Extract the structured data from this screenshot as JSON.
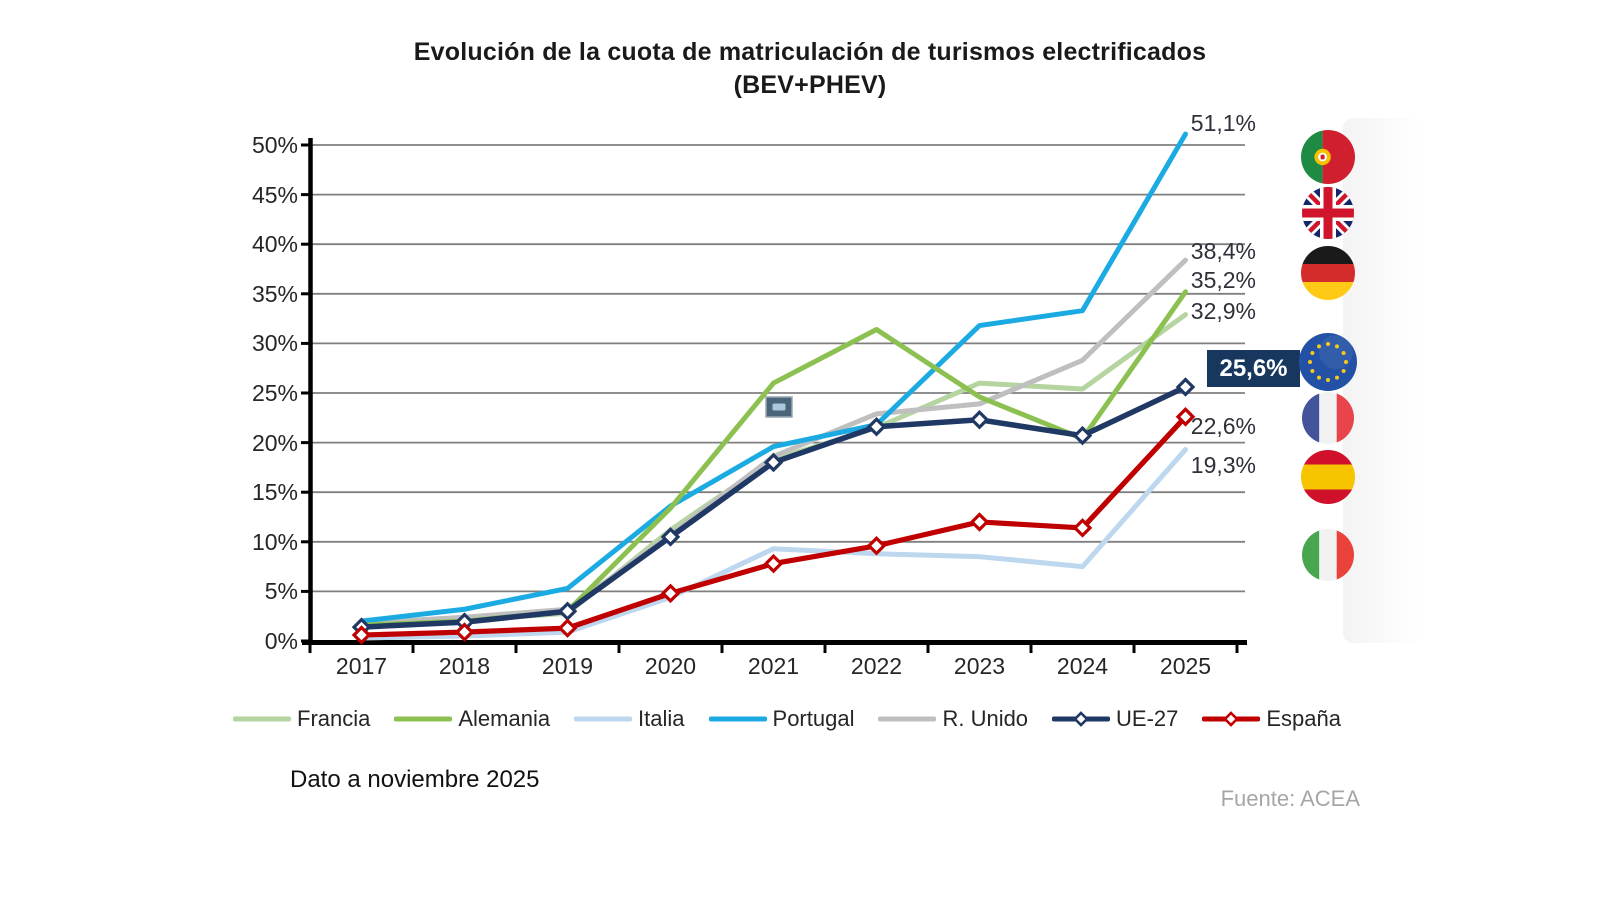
{
  "title": {
    "line1": "Evolución de la cuota de matriculación de turismos electrificados",
    "line2": "(BEV+PHEV)"
  },
  "chart_data": {
    "type": "line",
    "x": [
      2017,
      2018,
      2019,
      2020,
      2021,
      2022,
      2023,
      2024,
      2025
    ],
    "series": [
      {
        "name": "Francia",
        "color": "#b5d5a0",
        "marker": "none",
        "values": [
          1.7,
          2.1,
          2.8,
          11.2,
          18.3,
          21.5,
          26.0,
          25.4,
          32.9
        ]
      },
      {
        "name": "Alemania",
        "color": "#8cc152",
        "marker": "none",
        "values": [
          1.6,
          2.0,
          3.0,
          13.4,
          26.0,
          31.4,
          24.6,
          20.4,
          35.2
        ]
      },
      {
        "name": "Italia",
        "color": "#bdd7ee",
        "marker": "none",
        "values": [
          0.3,
          0.5,
          0.9,
          4.4,
          9.3,
          8.8,
          8.5,
          7.5,
          19.3
        ]
      },
      {
        "name": "Portugal",
        "color": "#1babe2",
        "marker": "none",
        "values": [
          2.0,
          3.2,
          5.3,
          13.6,
          19.6,
          21.8,
          31.8,
          33.3,
          51.1
        ]
      },
      {
        "name": "R. Unido",
        "color": "#bfbfbf",
        "marker": "none",
        "values": [
          1.8,
          2.4,
          3.2,
          10.7,
          18.6,
          22.9,
          23.9,
          28.3,
          38.4
        ]
      },
      {
        "name": "UE-27",
        "color": "#1f3864",
        "marker": "diamond",
        "values": [
          1.4,
          1.9,
          3.0,
          10.5,
          18.0,
          21.6,
          22.3,
          20.7,
          25.6
        ]
      },
      {
        "name": "España",
        "color": "#c00000",
        "marker": "diamond",
        "values": [
          0.6,
          0.9,
          1.3,
          4.8,
          7.8,
          9.6,
          12.0,
          11.4,
          22.6
        ]
      }
    ],
    "title": "Evolución de la cuota de matriculación de turismos electrificados (BEV+PHEV)",
    "xlabel": "",
    "ylabel": "",
    "ylim": [
      0,
      50
    ],
    "ytick_step": 5,
    "grid": true,
    "legend_position": "bottom"
  },
  "y_ticks": [
    "0%",
    "5%",
    "10%",
    "15%",
    "20%",
    "25%",
    "30%",
    "35%",
    "40%",
    "45%",
    "50%"
  ],
  "end_labels": [
    {
      "label": "51,1%",
      "boxed": false
    },
    {
      "label": "38,4%",
      "boxed": false
    },
    {
      "label": "35,2%",
      "boxed": false
    },
    {
      "label": "32,9%",
      "boxed": false
    },
    {
      "label": "25,6%",
      "boxed": true
    },
    {
      "label": "22,6%",
      "boxed": false
    },
    {
      "label": "19,3%",
      "boxed": false
    }
  ],
  "badge": {
    "bg_color": "#17375e",
    "text_color": "#ffffff"
  },
  "flags": [
    "portugal-flag",
    "uk-flag",
    "germany-flag",
    "eu-flag",
    "france-flag",
    "spain-flag",
    "italy-flag"
  ],
  "footer": {
    "note": "Dato a noviembre 2025",
    "source": "Fuente: ACEA"
  }
}
